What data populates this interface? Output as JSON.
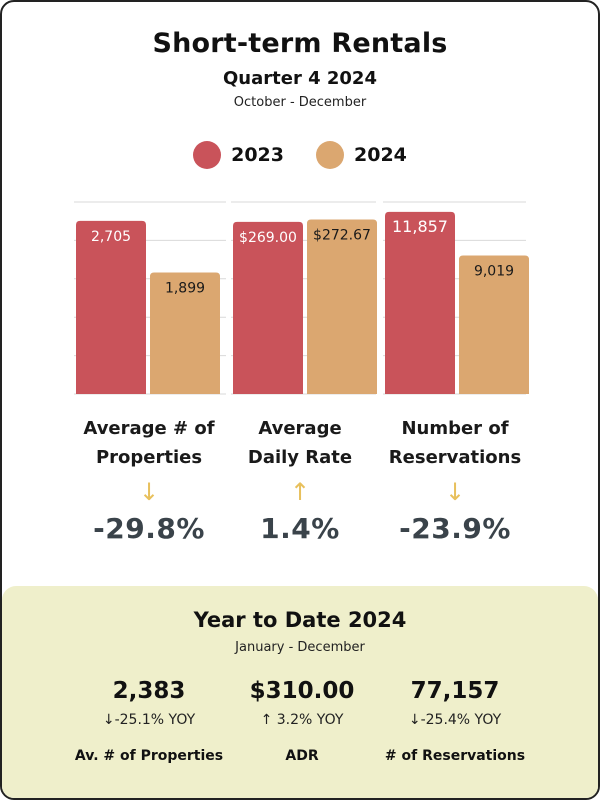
{
  "header": {
    "title": "Short-term Rentals",
    "subtitle": "Quarter 4 2024",
    "date_range": "October - December"
  },
  "legend": [
    {
      "label": "2023",
      "color": "#c9535a"
    },
    {
      "label": "2024",
      "color": "#dba770"
    }
  ],
  "metrics": [
    {
      "label_line1": "Average # of",
      "label_line2": "Properties",
      "arrow": "↓",
      "change": "-29.8%"
    },
    {
      "label_line1": "Average",
      "label_line2": "Daily Rate",
      "arrow": "↑",
      "change": "1.4%"
    },
    {
      "label_line1": "Number of",
      "label_line2": "Reservations",
      "arrow": "↓",
      "change": "-23.9%"
    }
  ],
  "chart_data": [
    {
      "type": "bar",
      "categories": [
        "2023",
        "2024"
      ],
      "values": [
        2705,
        1899
      ],
      "labels": [
        "2,705",
        "1,899"
      ],
      "ylim": [
        0,
        3000
      ],
      "colors": [
        "#c9535a",
        "#dba770"
      ]
    },
    {
      "type": "bar",
      "categories": [
        "2023",
        "2024"
      ],
      "values": [
        269.0,
        272.67
      ],
      "labels": [
        "$269.00",
        "$272.67"
      ],
      "ylim": [
        0,
        300
      ],
      "colors": [
        "#c9535a",
        "#dba770"
      ]
    },
    {
      "type": "bar",
      "categories": [
        "2023",
        "2024"
      ],
      "values": [
        11857,
        9019
      ],
      "labels": [
        "11,857",
        "9,019"
      ],
      "ylim": [
        0,
        12500
      ],
      "colors": [
        "#c9535a",
        "#dba770"
      ]
    }
  ],
  "ytd": {
    "title": "Year to Date 2024",
    "date_range": "January - December",
    "items": [
      {
        "value": "2,383",
        "yoy": "↓-25.1% YOY",
        "name": "Av. # of Properties"
      },
      {
        "value": "$310.00",
        "yoy": "↑  3.2% YOY",
        "name": "ADR"
      },
      {
        "value": "77,157",
        "yoy": "↓-25.4% YOY",
        "name": "# of Reservations"
      }
    ]
  }
}
